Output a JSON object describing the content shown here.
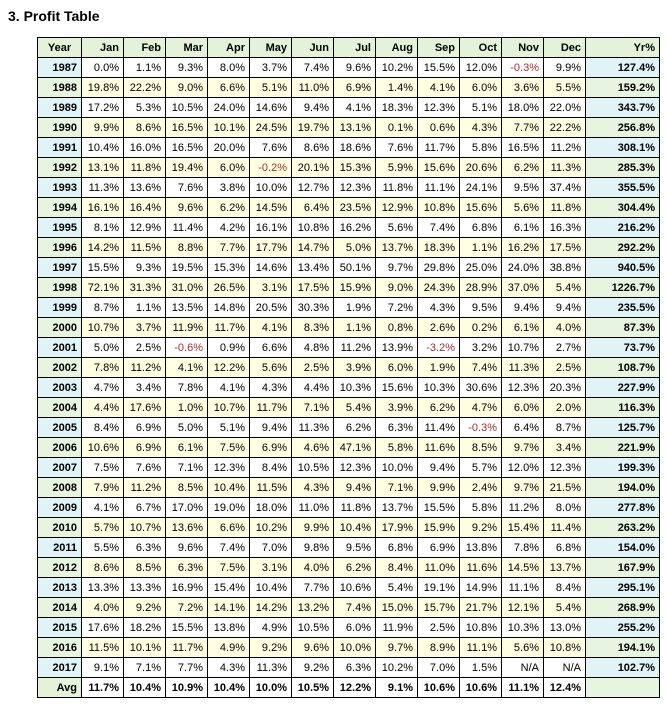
{
  "title": "3. Profit Table",
  "colors": {
    "header_bg": "#e3f2d9",
    "band_blue": "#e0f3f7",
    "band_green": "#e7f4df",
    "data_white": "#ffffff",
    "data_cream": "#ffffe1",
    "negative": "#a03030",
    "border": "#000000"
  },
  "chart_data": {
    "type": "table",
    "title": "3. Profit Table",
    "headers": [
      "Year",
      "Jan",
      "Feb",
      "Mar",
      "Apr",
      "May",
      "Jun",
      "Jul",
      "Aug",
      "Sep",
      "Oct",
      "Nov",
      "Dec",
      "Yr%"
    ],
    "rows": [
      {
        "year": "1987",
        "months": [
          "0.0%",
          "1.1%",
          "9.3%",
          "8.0%",
          "3.7%",
          "7.4%",
          "9.6%",
          "10.2%",
          "15.5%",
          "12.0%",
          "-0.3%",
          "9.9%"
        ],
        "yr": "127.4%"
      },
      {
        "year": "1988",
        "months": [
          "19.8%",
          "22.2%",
          "9.0%",
          "6.6%",
          "5.1%",
          "11.0%",
          "6.9%",
          "1.4%",
          "4.1%",
          "6.0%",
          "3.6%",
          "5.5%"
        ],
        "yr": "159.2%"
      },
      {
        "year": "1989",
        "months": [
          "17.2%",
          "5.3%",
          "10.5%",
          "24.0%",
          "14.6%",
          "9.4%",
          "4.1%",
          "18.3%",
          "12.3%",
          "5.1%",
          "18.0%",
          "22.0%"
        ],
        "yr": "343.7%"
      },
      {
        "year": "1990",
        "months": [
          "9.9%",
          "8.6%",
          "16.5%",
          "10.1%",
          "24.5%",
          "19.7%",
          "13.1%",
          "0.1%",
          "0.6%",
          "4.3%",
          "7.7%",
          "22.2%"
        ],
        "yr": "256.8%"
      },
      {
        "year": "1991",
        "months": [
          "10.4%",
          "16.0%",
          "16.5%",
          "20.0%",
          "7.6%",
          "8.6%",
          "18.6%",
          "7.6%",
          "11.7%",
          "5.8%",
          "16.5%",
          "11.2%"
        ],
        "yr": "308.1%"
      },
      {
        "year": "1992",
        "months": [
          "13.1%",
          "11.8%",
          "19.4%",
          "6.0%",
          "-0.2%",
          "20.1%",
          "15.3%",
          "5.9%",
          "15.6%",
          "20.6%",
          "6.2%",
          "11.3%"
        ],
        "yr": "285.3%"
      },
      {
        "year": "1993",
        "months": [
          "11.3%",
          "13.6%",
          "7.6%",
          "3.8%",
          "10.0%",
          "12.7%",
          "12.3%",
          "11.8%",
          "11.1%",
          "24.1%",
          "9.5%",
          "37.4%"
        ],
        "yr": "355.5%"
      },
      {
        "year": "1994",
        "months": [
          "16.1%",
          "16.4%",
          "9.6%",
          "6.2%",
          "14.5%",
          "6.4%",
          "23.5%",
          "12.9%",
          "10.8%",
          "15.6%",
          "5.6%",
          "11.8%"
        ],
        "yr": "304.4%"
      },
      {
        "year": "1995",
        "months": [
          "8.1%",
          "12.9%",
          "11.4%",
          "4.2%",
          "16.1%",
          "10.8%",
          "16.2%",
          "5.6%",
          "7.4%",
          "6.8%",
          "6.1%",
          "16.3%"
        ],
        "yr": "216.2%"
      },
      {
        "year": "1996",
        "months": [
          "14.2%",
          "11.5%",
          "8.8%",
          "7.7%",
          "17.7%",
          "14.7%",
          "5.0%",
          "13.7%",
          "18.3%",
          "1.1%",
          "16.2%",
          "17.5%"
        ],
        "yr": "292.2%"
      },
      {
        "year": "1997",
        "months": [
          "15.5%",
          "9.3%",
          "19.5%",
          "15.3%",
          "14.6%",
          "13.4%",
          "50.1%",
          "9.7%",
          "29.8%",
          "25.0%",
          "24.0%",
          "38.8%"
        ],
        "yr": "940.5%"
      },
      {
        "year": "1998",
        "months": [
          "72.1%",
          "31.3%",
          "31.0%",
          "26.5%",
          "3.1%",
          "17.5%",
          "15.9%",
          "9.0%",
          "24.3%",
          "28.9%",
          "37.0%",
          "5.4%"
        ],
        "yr": "1226.7%"
      },
      {
        "year": "1999",
        "months": [
          "8.7%",
          "1.1%",
          "13.5%",
          "14.8%",
          "20.5%",
          "30.3%",
          "1.9%",
          "7.2%",
          "4.3%",
          "9.5%",
          "9.4%",
          "9.4%"
        ],
        "yr": "235.5%"
      },
      {
        "year": "2000",
        "months": [
          "10.7%",
          "3.7%",
          "11.9%",
          "11.7%",
          "4.1%",
          "8.3%",
          "1.1%",
          "0.8%",
          "2.6%",
          "0.2%",
          "6.1%",
          "4.0%"
        ],
        "yr": "87.3%"
      },
      {
        "year": "2001",
        "months": [
          "5.0%",
          "2.5%",
          "-0.6%",
          "0.9%",
          "6.6%",
          "4.8%",
          "11.2%",
          "13.9%",
          "-3.2%",
          "3.2%",
          "10.7%",
          "2.7%"
        ],
        "yr": "73.7%"
      },
      {
        "year": "2002",
        "months": [
          "7.8%",
          "11.2%",
          "4.1%",
          "12.2%",
          "5.6%",
          "2.5%",
          "3.9%",
          "6.0%",
          "1.9%",
          "7.4%",
          "11.3%",
          "2.5%"
        ],
        "yr": "108.7%"
      },
      {
        "year": "2003",
        "months": [
          "4.7%",
          "3.4%",
          "7.8%",
          "4.1%",
          "4.3%",
          "4.4%",
          "10.3%",
          "15.6%",
          "10.3%",
          "30.6%",
          "12.3%",
          "20.3%"
        ],
        "yr": "227.9%"
      },
      {
        "year": "2004",
        "months": [
          "4.4%",
          "17.6%",
          "1.0%",
          "10.7%",
          "11.7%",
          "7.1%",
          "5.4%",
          "3.9%",
          "6.2%",
          "4.7%",
          "6.0%",
          "2.0%"
        ],
        "yr": "116.3%"
      },
      {
        "year": "2005",
        "months": [
          "8.4%",
          "6.9%",
          "5.0%",
          "5.1%",
          "9.4%",
          "11.3%",
          "6.2%",
          "6.3%",
          "11.4%",
          "-0.3%",
          "6.4%",
          "8.7%"
        ],
        "yr": "125.7%"
      },
      {
        "year": "2006",
        "months": [
          "10.6%",
          "6.9%",
          "6.1%",
          "7.5%",
          "6.9%",
          "4.6%",
          "47.1%",
          "5.8%",
          "11.6%",
          "8.5%",
          "9.7%",
          "3.4%"
        ],
        "yr": "221.9%"
      },
      {
        "year": "2007",
        "months": [
          "7.5%",
          "7.6%",
          "7.1%",
          "12.3%",
          "8.4%",
          "10.5%",
          "12.3%",
          "10.0%",
          "9.4%",
          "5.7%",
          "12.0%",
          "12.3%"
        ],
        "yr": "199.3%"
      },
      {
        "year": "2008",
        "months": [
          "7.9%",
          "11.2%",
          "8.5%",
          "10.4%",
          "11.5%",
          "4.3%",
          "9.4%",
          "7.1%",
          "9.9%",
          "2.4%",
          "9.7%",
          "21.5%"
        ],
        "yr": "194.0%"
      },
      {
        "year": "2009",
        "months": [
          "4.1%",
          "6.7%",
          "17.0%",
          "19.0%",
          "18.0%",
          "11.0%",
          "11.8%",
          "13.7%",
          "15.5%",
          "5.8%",
          "11.2%",
          "8.0%"
        ],
        "yr": "277.8%"
      },
      {
        "year": "2010",
        "months": [
          "5.7%",
          "10.7%",
          "13.6%",
          "6.6%",
          "10.2%",
          "9.9%",
          "10.4%",
          "17.9%",
          "15.9%",
          "9.2%",
          "15.4%",
          "11.4%"
        ],
        "yr": "263.2%"
      },
      {
        "year": "2011",
        "months": [
          "5.5%",
          "6.3%",
          "9.6%",
          "7.4%",
          "7.0%",
          "9.8%",
          "9.5%",
          "6.8%",
          "6.9%",
          "13.8%",
          "7.8%",
          "6.8%"
        ],
        "yr": "154.0%"
      },
      {
        "year": "2012",
        "months": [
          "8.6%",
          "8.5%",
          "6.3%",
          "7.5%",
          "3.1%",
          "4.0%",
          "6.2%",
          "8.4%",
          "11.0%",
          "11.6%",
          "14.5%",
          "13.7%"
        ],
        "yr": "167.9%"
      },
      {
        "year": "2013",
        "months": [
          "13.3%",
          "13.3%",
          "16.9%",
          "15.4%",
          "10.4%",
          "7.7%",
          "10.6%",
          "5.4%",
          "19.1%",
          "14.9%",
          "11.1%",
          "8.4%"
        ],
        "yr": "295.1%"
      },
      {
        "year": "2014",
        "months": [
          "4.0%",
          "9.2%",
          "7.2%",
          "14.1%",
          "14.2%",
          "13.2%",
          "7.4%",
          "15.0%",
          "15.7%",
          "21.7%",
          "12.1%",
          "5.4%"
        ],
        "yr": "268.9%"
      },
      {
        "year": "2015",
        "months": [
          "17.6%",
          "18.2%",
          "15.5%",
          "13.8%",
          "4.9%",
          "10.5%",
          "6.0%",
          "11.9%",
          "2.5%",
          "10.8%",
          "10.3%",
          "13.0%"
        ],
        "yr": "255.2%"
      },
      {
        "year": "2016",
        "months": [
          "11.5%",
          "10.1%",
          "11.7%",
          "4.9%",
          "9.2%",
          "9.6%",
          "10.0%",
          "9.7%",
          "8.9%",
          "11.1%",
          "5.6%",
          "10.8%"
        ],
        "yr": "194.1%"
      },
      {
        "year": "2017",
        "months": [
          "9.1%",
          "7.1%",
          "7.7%",
          "4.3%",
          "11.3%",
          "9.2%",
          "6.3%",
          "10.2%",
          "7.0%",
          "1.5%",
          "N/A",
          "N/A"
        ],
        "yr": "102.7%"
      }
    ],
    "avg": {
      "label": "Avg",
      "months": [
        "11.7%",
        "10.4%",
        "10.9%",
        "10.4%",
        "10.0%",
        "10.5%",
        "12.2%",
        "9.1%",
        "10.6%",
        "10.6%",
        "11.1%",
        "12.4%"
      ],
      "yr": ""
    }
  }
}
